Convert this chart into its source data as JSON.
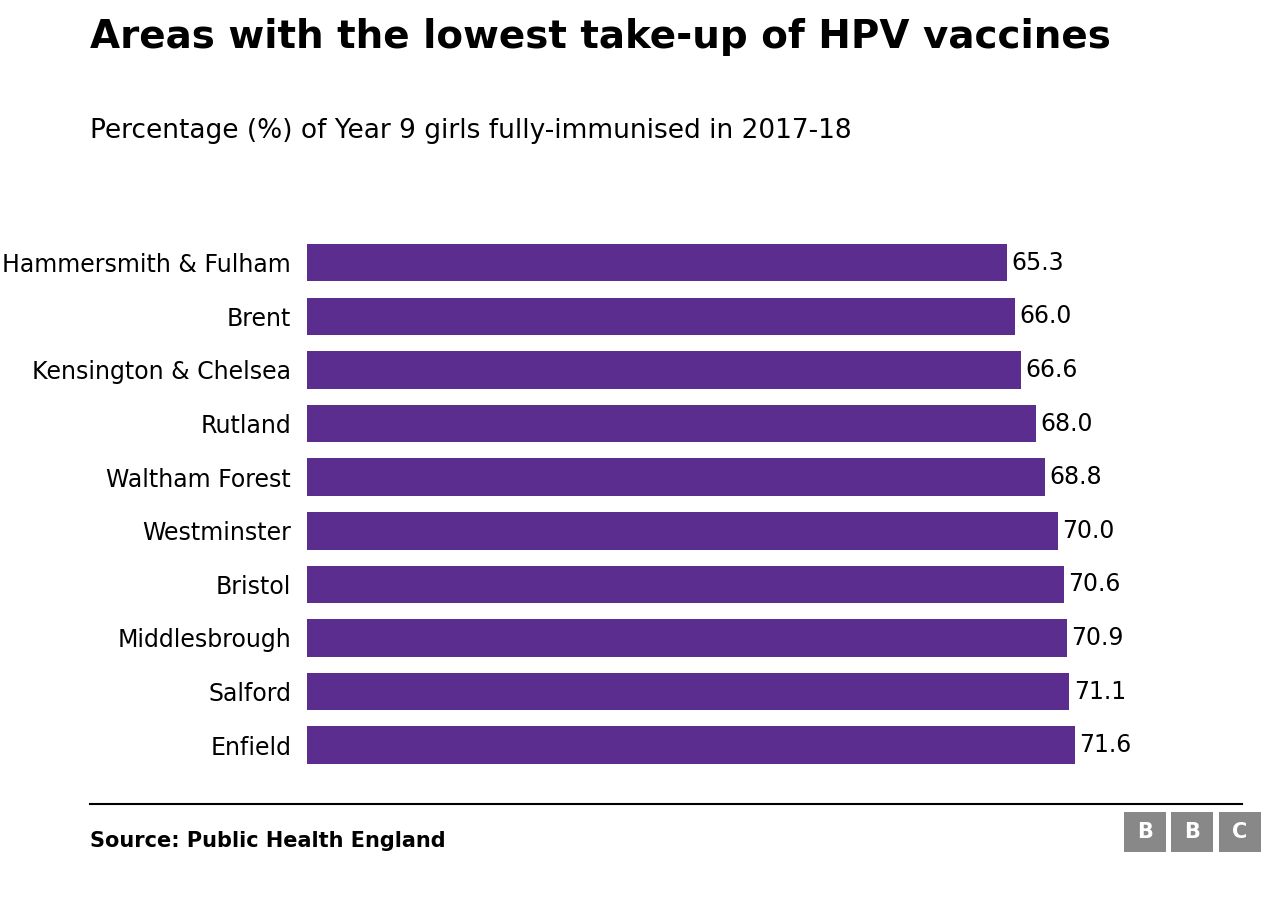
{
  "title": "Areas with the lowest take-up of HPV vaccines",
  "subtitle": "Percentage (%) of Year 9 girls fully-immunised in 2017-18",
  "source": "Source: Public Health England",
  "categories": [
    "Hammersmith & Fulham",
    "Brent",
    "Kensington & Chelsea",
    "Rutland",
    "Waltham Forest",
    "Westminster",
    "Bristol",
    "Middlesbrough",
    "Salford",
    "Enfield"
  ],
  "values": [
    65.3,
    66.0,
    66.6,
    68.0,
    68.8,
    70.0,
    70.6,
    70.9,
    71.1,
    71.6
  ],
  "bar_color": "#5b2d8e",
  "background_color": "#ffffff",
  "title_fontsize": 28,
  "subtitle_fontsize": 19,
  "label_fontsize": 17,
  "value_fontsize": 17,
  "source_fontsize": 15,
  "xlim": [
    0,
    80
  ],
  "bbc_logo_color": "#888888"
}
